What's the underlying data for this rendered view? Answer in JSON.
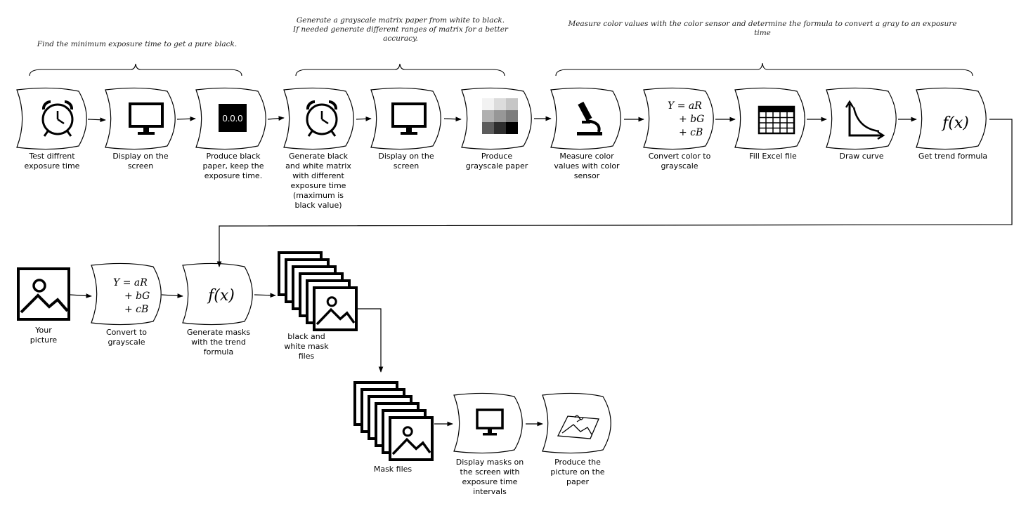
{
  "annotations": {
    "stage1": "Find the minimum exposure time to get a pure black.",
    "stage2": "Generate a grayscale matrix paper from white to black.\nIf needed generate different ranges of matrix for a better accuracy.",
    "stage3": "Measure color values with the color sensor and determine the formula to convert a gray to an exposure time"
  },
  "steps": {
    "s1": "Test diffrent\nexposure time",
    "s2": "Display on the\nscreen",
    "s3": "Produce black\npaper, keep the\nexposure time.",
    "s4": "Generate black\nand white matrix\nwith different\nexposure time\n(maximum is\nblack value)",
    "s5": "Display on the\nscreen",
    "s6": "Produce\ngrayscale paper",
    "s7": "Measure color\nvalues with color\nsensor",
    "s8": "Convert color to\ngrayscale",
    "s9": "Fill Excel file",
    "s10": "Draw curve",
    "s11": "Get trend formula",
    "r1": "Your\npicture",
    "r2": "Convert to\ngrayscale",
    "r3": "Generate masks\nwith the trend\nformula",
    "r4": "black and\nwhite mask\nfiles",
    "r5": "Mask files",
    "r6": "Display masks on\nthe screen with\nexposure time\nintervals",
    "r7": "Produce the\npicture on the\npaper"
  },
  "icons": {
    "black_value": "0.0.0",
    "formula": "f(x)",
    "eq1": "Y = aR",
    "eq2": "+ bG",
    "eq3": "+ cB"
  }
}
